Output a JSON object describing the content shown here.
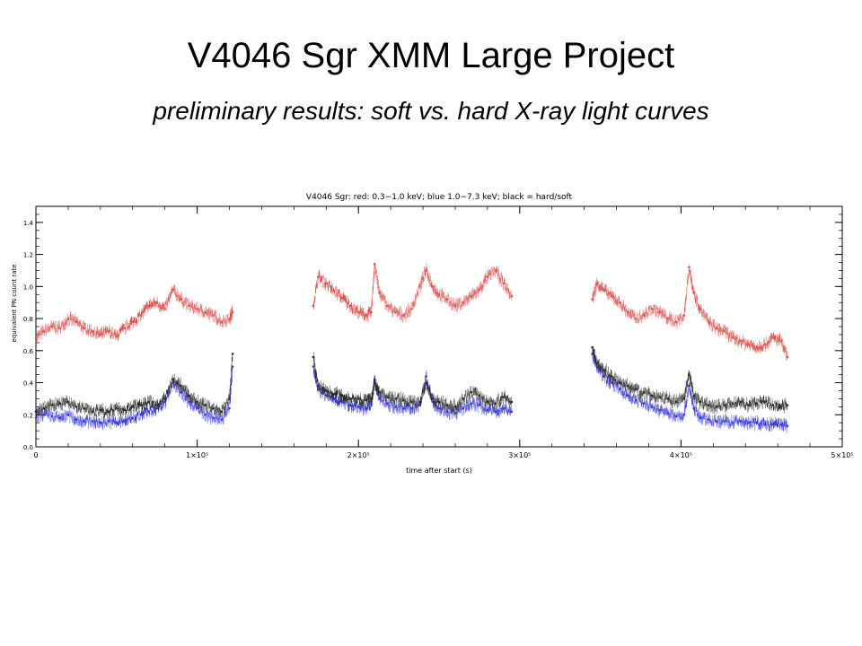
{
  "slide": {
    "title": "V4046 Sgr XMM Large Project",
    "subtitle": "preliminary results: soft vs. hard X-ray light curves"
  },
  "chart_data": {
    "type": "scatter",
    "title": "V4046 Sgr: red: 0.3−1.0 keV; blue 1.0−7.3 keV; black = hard/soft",
    "xlabel": "time after start (s)",
    "ylabel": "equivalent PN count rate",
    "xlim": [
      0,
      500000
    ],
    "ylim": [
      0.0,
      1.5
    ],
    "x_ticks": [
      {
        "value": 0,
        "label": "0"
      },
      {
        "value": 100000,
        "label": "1×10⁵"
      },
      {
        "value": 200000,
        "label": "2×10⁵"
      },
      {
        "value": 300000,
        "label": "3×10⁵"
      },
      {
        "value": 400000,
        "label": "4×10⁵"
      },
      {
        "value": 500000,
        "label": "5×10⁵"
      }
    ],
    "y_ticks": [
      {
        "value": 0.0,
        "label": "0.0"
      },
      {
        "value": 0.2,
        "label": "0.2"
      },
      {
        "value": 0.4,
        "label": "0.4"
      },
      {
        "value": 0.6,
        "label": "0.6"
      },
      {
        "value": 0.8,
        "label": "0.8"
      },
      {
        "value": 1.0,
        "label": "1.0"
      },
      {
        "value": 1.2,
        "label": "1.2"
      },
      {
        "value": 1.4,
        "label": "1.4"
      }
    ],
    "grid": false,
    "series": [
      {
        "key": "soft",
        "color": "#d9534f",
        "points": [
          [
            0,
            0.68
          ],
          [
            5000,
            0.72
          ],
          [
            10000,
            0.75
          ],
          [
            15000,
            0.74
          ],
          [
            20000,
            0.8
          ],
          [
            25000,
            0.78
          ],
          [
            30000,
            0.74
          ],
          [
            35000,
            0.72
          ],
          [
            40000,
            0.7
          ],
          [
            45000,
            0.72
          ],
          [
            50000,
            0.69
          ],
          [
            55000,
            0.74
          ],
          [
            60000,
            0.78
          ],
          [
            65000,
            0.82
          ],
          [
            70000,
            0.88
          ],
          [
            75000,
            0.9
          ],
          [
            80000,
            0.86
          ],
          [
            85000,
            0.98
          ],
          [
            90000,
            0.92
          ],
          [
            95000,
            0.88
          ],
          [
            100000,
            0.86
          ],
          [
            105000,
            0.84
          ],
          [
            110000,
            0.82
          ],
          [
            115000,
            0.78
          ],
          [
            120000,
            0.8
          ],
          [
            122000,
            0.84
          ],
          [
            172000,
            0.88
          ],
          [
            175000,
            1.06
          ],
          [
            180000,
            1.02
          ],
          [
            185000,
            0.97
          ],
          [
            190000,
            0.93
          ],
          [
            195000,
            0.88
          ],
          [
            200000,
            0.84
          ],
          [
            205000,
            0.82
          ],
          [
            208000,
            0.84
          ],
          [
            210000,
            1.14
          ],
          [
            213000,
            0.96
          ],
          [
            218000,
            0.88
          ],
          [
            223000,
            0.84
          ],
          [
            228000,
            0.82
          ],
          [
            233000,
            0.86
          ],
          [
            238000,
            1.0
          ],
          [
            242000,
            1.1
          ],
          [
            246000,
            1.0
          ],
          [
            250000,
            0.95
          ],
          [
            255000,
            0.92
          ],
          [
            260000,
            0.88
          ],
          [
            265000,
            0.9
          ],
          [
            270000,
            0.94
          ],
          [
            275000,
            0.98
          ],
          [
            280000,
            1.06
          ],
          [
            285000,
            1.1
          ],
          [
            290000,
            1.02
          ],
          [
            295000,
            0.94
          ],
          [
            345000,
            0.92
          ],
          [
            348000,
            1.02
          ],
          [
            352000,
            0.98
          ],
          [
            357000,
            0.94
          ],
          [
            362000,
            0.9
          ],
          [
            367000,
            0.84
          ],
          [
            372000,
            0.8
          ],
          [
            377000,
            0.82
          ],
          [
            382000,
            0.86
          ],
          [
            387000,
            0.84
          ],
          [
            392000,
            0.8
          ],
          [
            397000,
            0.78
          ],
          [
            402000,
            0.82
          ],
          [
            405000,
            1.12
          ],
          [
            408000,
            0.96
          ],
          [
            412000,
            0.86
          ],
          [
            417000,
            0.78
          ],
          [
            422000,
            0.74
          ],
          [
            427000,
            0.72
          ],
          [
            432000,
            0.68
          ],
          [
            437000,
            0.66
          ],
          [
            442000,
            0.64
          ],
          [
            447000,
            0.62
          ],
          [
            452000,
            0.64
          ],
          [
            457000,
            0.68
          ],
          [
            462000,
            0.66
          ],
          [
            466000,
            0.56
          ]
        ]
      },
      {
        "key": "hard",
        "color": "#3a3ad8",
        "points": [
          [
            0,
            0.18
          ],
          [
            5000,
            0.2
          ],
          [
            10000,
            0.19
          ],
          [
            15000,
            0.18
          ],
          [
            20000,
            0.2
          ],
          [
            25000,
            0.17
          ],
          [
            30000,
            0.16
          ],
          [
            35000,
            0.16
          ],
          [
            40000,
            0.15
          ],
          [
            45000,
            0.16
          ],
          [
            50000,
            0.15
          ],
          [
            55000,
            0.16
          ],
          [
            60000,
            0.18
          ],
          [
            65000,
            0.2
          ],
          [
            70000,
            0.22
          ],
          [
            75000,
            0.24
          ],
          [
            80000,
            0.28
          ],
          [
            85000,
            0.4
          ],
          [
            90000,
            0.34
          ],
          [
            95000,
            0.28
          ],
          [
            100000,
            0.24
          ],
          [
            105000,
            0.2
          ],
          [
            110000,
            0.18
          ],
          [
            115000,
            0.17
          ],
          [
            120000,
            0.24
          ],
          [
            122000,
            0.5
          ],
          [
            172000,
            0.5
          ],
          [
            175000,
            0.36
          ],
          [
            180000,
            0.32
          ],
          [
            185000,
            0.3
          ],
          [
            190000,
            0.28
          ],
          [
            195000,
            0.26
          ],
          [
            200000,
            0.25
          ],
          [
            205000,
            0.24
          ],
          [
            208000,
            0.26
          ],
          [
            210000,
            0.42
          ],
          [
            213000,
            0.3
          ],
          [
            218000,
            0.27
          ],
          [
            223000,
            0.25
          ],
          [
            228000,
            0.24
          ],
          [
            233000,
            0.24
          ],
          [
            238000,
            0.26
          ],
          [
            242000,
            0.44
          ],
          [
            246000,
            0.28
          ],
          [
            250000,
            0.24
          ],
          [
            255000,
            0.22
          ],
          [
            260000,
            0.21
          ],
          [
            265000,
            0.24
          ],
          [
            270000,
            0.27
          ],
          [
            275000,
            0.26
          ],
          [
            280000,
            0.23
          ],
          [
            285000,
            0.22
          ],
          [
            290000,
            0.24
          ],
          [
            295000,
            0.22
          ],
          [
            345000,
            0.58
          ],
          [
            348000,
            0.5
          ],
          [
            352000,
            0.44
          ],
          [
            357000,
            0.4
          ],
          [
            362000,
            0.36
          ],
          [
            367000,
            0.32
          ],
          [
            372000,
            0.29
          ],
          [
            377000,
            0.27
          ],
          [
            382000,
            0.25
          ],
          [
            387000,
            0.23
          ],
          [
            392000,
            0.21
          ],
          [
            397000,
            0.19
          ],
          [
            402000,
            0.2
          ],
          [
            405000,
            0.38
          ],
          [
            408000,
            0.24
          ],
          [
            412000,
            0.18
          ],
          [
            417000,
            0.17
          ],
          [
            422000,
            0.16
          ],
          [
            427000,
            0.16
          ],
          [
            432000,
            0.15
          ],
          [
            437000,
            0.16
          ],
          [
            442000,
            0.15
          ],
          [
            447000,
            0.15
          ],
          [
            452000,
            0.14
          ],
          [
            457000,
            0.14
          ],
          [
            462000,
            0.14
          ],
          [
            466000,
            0.13
          ]
        ]
      },
      {
        "key": "ratio",
        "color": "#2a2a2a",
        "points": [
          [
            0,
            0.22
          ],
          [
            5000,
            0.24
          ],
          [
            10000,
            0.26
          ],
          [
            15000,
            0.27
          ],
          [
            20000,
            0.28
          ],
          [
            25000,
            0.25
          ],
          [
            30000,
            0.24
          ],
          [
            35000,
            0.22
          ],
          [
            40000,
            0.23
          ],
          [
            45000,
            0.22
          ],
          [
            50000,
            0.24
          ],
          [
            55000,
            0.23
          ],
          [
            60000,
            0.25
          ],
          [
            65000,
            0.26
          ],
          [
            70000,
            0.28
          ],
          [
            75000,
            0.26
          ],
          [
            80000,
            0.3
          ],
          [
            85000,
            0.42
          ],
          [
            90000,
            0.38
          ],
          [
            95000,
            0.32
          ],
          [
            100000,
            0.28
          ],
          [
            105000,
            0.26
          ],
          [
            110000,
            0.24
          ],
          [
            115000,
            0.22
          ],
          [
            120000,
            0.3
          ],
          [
            122000,
            0.58
          ],
          [
            172000,
            0.56
          ],
          [
            175000,
            0.38
          ],
          [
            180000,
            0.35
          ],
          [
            185000,
            0.33
          ],
          [
            190000,
            0.32
          ],
          [
            195000,
            0.3
          ],
          [
            200000,
            0.3
          ],
          [
            205000,
            0.29
          ],
          [
            208000,
            0.3
          ],
          [
            210000,
            0.4
          ],
          [
            213000,
            0.34
          ],
          [
            218000,
            0.31
          ],
          [
            223000,
            0.3
          ],
          [
            228000,
            0.29
          ],
          [
            233000,
            0.28
          ],
          [
            238000,
            0.28
          ],
          [
            242000,
            0.4
          ],
          [
            246000,
            0.3
          ],
          [
            250000,
            0.28
          ],
          [
            255000,
            0.26
          ],
          [
            260000,
            0.25
          ],
          [
            265000,
            0.3
          ],
          [
            270000,
            0.34
          ],
          [
            275000,
            0.32
          ],
          [
            280000,
            0.28
          ],
          [
            285000,
            0.27
          ],
          [
            290000,
            0.31
          ],
          [
            295000,
            0.28
          ],
          [
            345000,
            0.62
          ],
          [
            348000,
            0.52
          ],
          [
            352000,
            0.48
          ],
          [
            357000,
            0.44
          ],
          [
            362000,
            0.4
          ],
          [
            367000,
            0.38
          ],
          [
            372000,
            0.36
          ],
          [
            377000,
            0.34
          ],
          [
            382000,
            0.32
          ],
          [
            387000,
            0.31
          ],
          [
            392000,
            0.3
          ],
          [
            397000,
            0.28
          ],
          [
            402000,
            0.3
          ],
          [
            405000,
            0.45
          ],
          [
            408000,
            0.32
          ],
          [
            412000,
            0.28
          ],
          [
            417000,
            0.26
          ],
          [
            422000,
            0.25
          ],
          [
            427000,
            0.26
          ],
          [
            432000,
            0.27
          ],
          [
            437000,
            0.28
          ],
          [
            442000,
            0.26
          ],
          [
            447000,
            0.27
          ],
          [
            452000,
            0.28
          ],
          [
            457000,
            0.26
          ],
          [
            462000,
            0.25
          ],
          [
            466000,
            0.26
          ]
        ]
      }
    ]
  }
}
